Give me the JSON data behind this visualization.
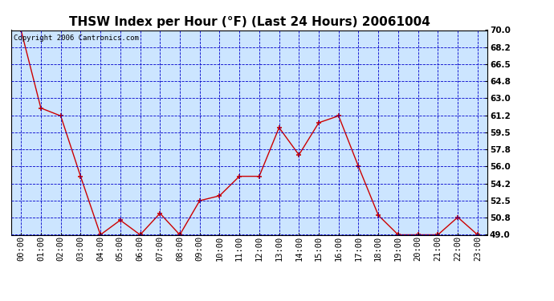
{
  "title": "THSW Index per Hour (°F) (Last 24 Hours) 20061004",
  "copyright": "Copyright 2006 Cantronics.com",
  "x_labels": [
    "00:00",
    "01:00",
    "02:00",
    "03:00",
    "04:00",
    "05:00",
    "06:00",
    "07:00",
    "08:00",
    "09:00",
    "10:00",
    "11:00",
    "12:00",
    "13:00",
    "14:00",
    "15:00",
    "16:00",
    "17:00",
    "18:00",
    "19:00",
    "20:00",
    "21:00",
    "22:00",
    "23:00"
  ],
  "y_values": [
    70.0,
    62.0,
    61.2,
    55.0,
    49.0,
    50.5,
    49.0,
    51.2,
    49.0,
    52.5,
    53.0,
    55.0,
    55.0,
    60.0,
    57.2,
    60.5,
    61.2,
    56.0,
    51.0,
    49.0,
    49.0,
    49.0,
    50.8,
    49.0
  ],
  "ylim": [
    49.0,
    70.0
  ],
  "y_ticks": [
    49.0,
    50.8,
    52.5,
    54.2,
    56.0,
    57.8,
    59.5,
    61.2,
    63.0,
    64.8,
    66.5,
    68.2,
    70.0
  ],
  "line_color": "#cc0000",
  "marker_color": "#cc0000",
  "plot_bg_color": "#cce5ff",
  "outer_bg_color": "#ffffff",
  "grid_color": "#0000cc",
  "title_color": "#000000",
  "copyright_color": "#000000",
  "title_fontsize": 11,
  "copyright_fontsize": 6.5,
  "tick_label_fontsize": 7.5
}
